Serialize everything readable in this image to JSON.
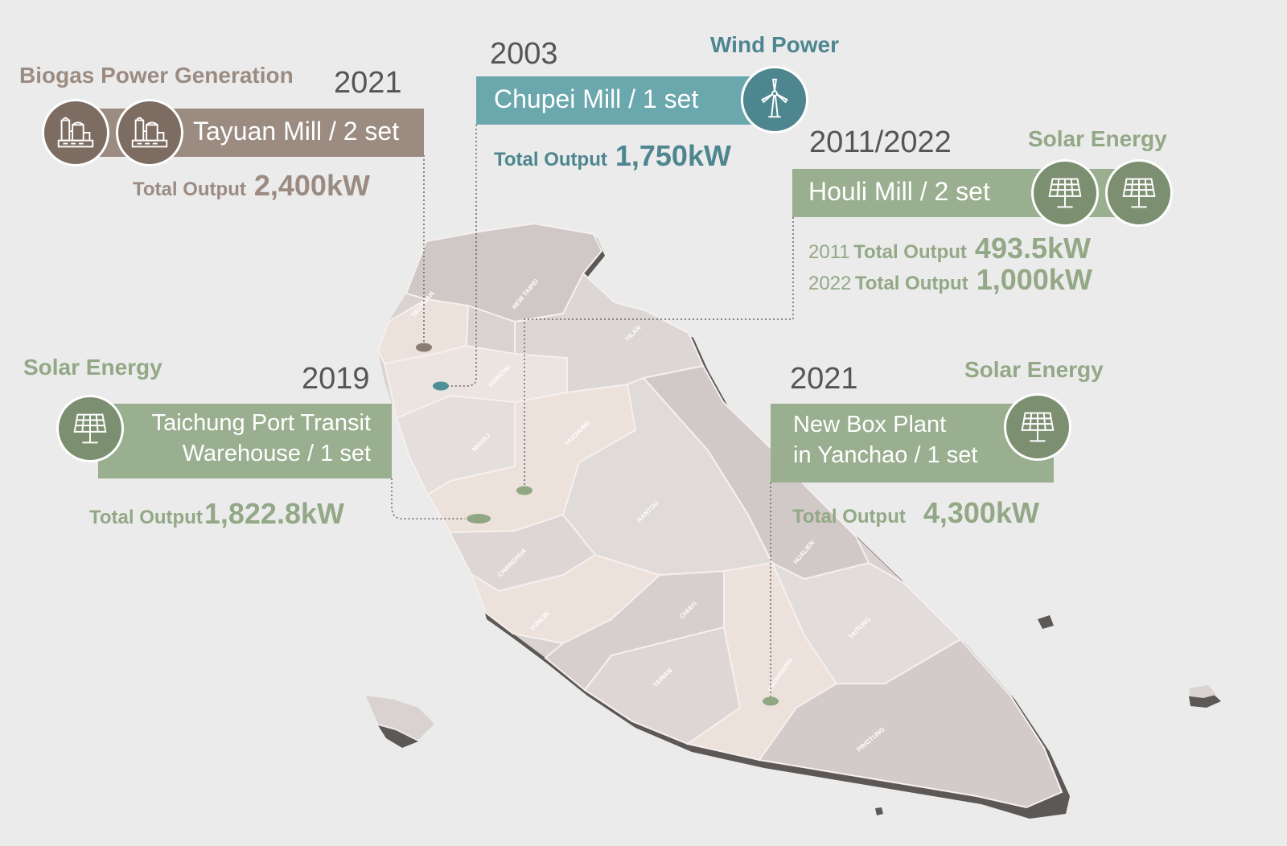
{
  "map": {
    "region_labels": [
      "TAOYUAN",
      "NEW TAIPEI",
      "YILAN",
      "HSINCHU",
      "MIAOLI",
      "TAICHUNG",
      "NANTOU",
      "CHANGHUA",
      "YUNLIN",
      "CHIAYI",
      "TAINAN",
      "KAOHSIUNG",
      "PINGTUNG",
      "HUALIEN",
      "TAITUNG"
    ]
  },
  "colors": {
    "biogas": "#9b8b80",
    "biogas_icon": "#7d6c62",
    "wind": "#6aa8ae",
    "wind_icon": "#4e8690",
    "solar": "#9aaf8f",
    "solar_icon": "#7c8f71",
    "land_light": "#ede1dc",
    "land_dark": "#d8d1cf",
    "background": "#ebebeb"
  },
  "callouts": {
    "biogas": {
      "category": "Biogas Power Generation",
      "year": "2021",
      "label": "Tayuan Mill / 2 set",
      "output_label": "Total Output",
      "output_value": "2,400kW",
      "icon": "factory-icon"
    },
    "wind": {
      "category": "Wind Power",
      "year": "2003",
      "label": "Chupei Mill / 1 set",
      "output_label": "Total Output",
      "output_value": "1,750kW",
      "icon": "wind-turbine-icon"
    },
    "houli": {
      "category": "Solar Energy",
      "year": "2011/2022",
      "label": "Houli Mill / 2 set",
      "outputs": [
        {
          "year": "2011",
          "label": "Total Output",
          "value": "493.5kW"
        },
        {
          "year": "2022",
          "label": "Total Output",
          "value": "1,000kW"
        }
      ],
      "icon": "solar-panel-icon"
    },
    "taichung": {
      "category": "Solar Energy",
      "year": "2019",
      "label_line1": "Taichung Port Transit",
      "label_line2": "Warehouse / 1 set",
      "output_label": "Total Output",
      "output_value": "1,822.8kW",
      "icon": "solar-panel-icon"
    },
    "yanchao": {
      "category": "Solar Energy",
      "year": "2021",
      "label_line1": "New Box Plant",
      "label_line2": "in Yanchao / 1 set",
      "output_label": "Total Output",
      "output_value": "4,300kW",
      "icon": "solar-panel-icon"
    }
  }
}
